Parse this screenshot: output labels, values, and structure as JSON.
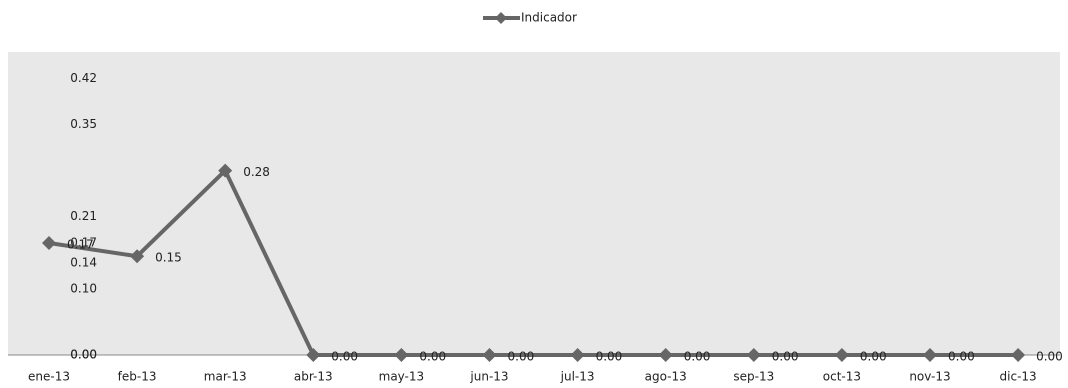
{
  "chart_data": {
    "type": "line",
    "categories": [
      "ene-13",
      "feb-13",
      "mar-13",
      "abr-13",
      "may-13",
      "jun-13",
      "jul-13",
      "ago-13",
      "sep-13",
      "oct-13",
      "nov-13",
      "dic-13"
    ],
    "series": [
      {
        "name": "Indicador",
        "color": "#666666",
        "values": [
          0.17,
          0.15,
          0.28,
          0,
          0,
          0,
          0,
          0,
          0,
          0,
          0,
          0
        ],
        "value_labels": [
          "0.17",
          "0.15",
          "0.28",
          "0.00",
          "0.00",
          "0.00",
          "0.00",
          "0.00",
          "0.00",
          "0.00",
          "0.00",
          "0.00"
        ]
      }
    ],
    "ylim": [
      0,
      0.46
    ],
    "yticks": [
      {
        "value": 0,
        "label": "0.00"
      },
      {
        "value": 0,
        "label": "0.00"
      },
      {
        "value": 0.1,
        "label": "0.10"
      },
      0.14,
      0.17,
      0.21,
      0.35,
      0.42
    ],
    "legend": "top"
  }
}
